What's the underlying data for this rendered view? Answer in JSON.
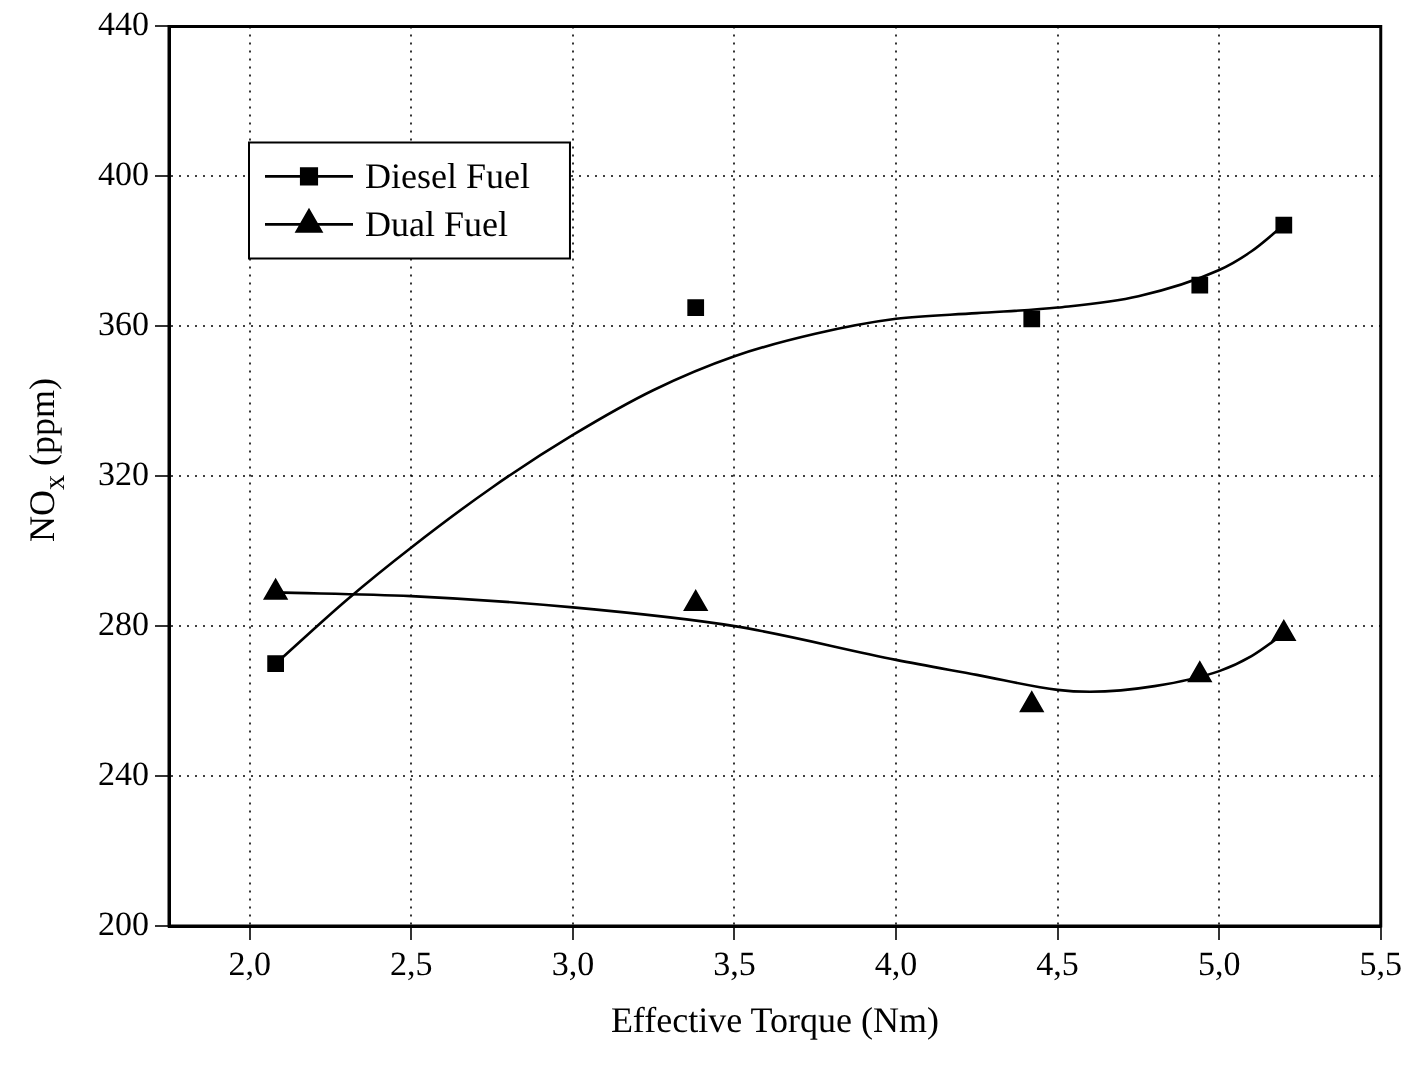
{
  "chart_data": {
    "type": "scatter",
    "xlabel": "Effective Torque (Nm)",
    "ylabel": "NO$_{x}$ (ppm)",
    "xlim": [
      1.75,
      5.5
    ],
    "xticks": [
      {
        "value": 2,
        "label": "2,0"
      },
      {
        "value": 2.5,
        "label": "2,5"
      },
      {
        "value": 3,
        "label": "3,0"
      },
      {
        "value": 3.5,
        "label": "3,5"
      },
      {
        "value": 4,
        "label": "4,0"
      },
      {
        "value": 4.5,
        "label": "4,5"
      },
      {
        "value": 5,
        "label": "5,0"
      },
      {
        "value": 5.5,
        "label": "5,5"
      }
    ],
    "ylim": [
      200,
      440
    ],
    "yticks": [
      200,
      240,
      280,
      320,
      360,
      400,
      440
    ],
    "grid": true,
    "legend": "top left",
    "series": [
      {
        "name": "Diesel Fuel",
        "color": "#000000",
        "marker": "square",
        "x": [
          2.08,
          3.38,
          4.42,
          4.94,
          5.2
        ],
        "values": [
          270,
          365,
          362,
          371,
          387
        ]
      },
      {
        "name": "Dual Fuel",
        "color": "#000000",
        "marker": "triangle",
        "x": [
          2.08,
          3.38,
          4.42,
          4.94,
          5.2
        ],
        "values": [
          289,
          286,
          259,
          267,
          278
        ]
      },
      {
        "type": "line",
        "color": "#000000",
        "marker": "none",
        "x": [
          2.08,
          2.3,
          2.5,
          2.75,
          3.0,
          3.25,
          3.5,
          3.75,
          4.0,
          4.25,
          4.5,
          4.75,
          5.0,
          5.1,
          5.2
        ],
        "values": [
          270,
          287,
          301,
          317,
          331,
          343,
          352,
          358,
          362,
          363.5,
          365,
          368,
          375,
          380,
          387
        ]
      },
      {
        "type": "line",
        "color": "#000000",
        "marker": "none",
        "x": [
          2.08,
          2.5,
          3.0,
          3.5,
          4.0,
          4.25,
          4.5,
          4.6,
          4.8,
          5.0,
          5.1,
          5.2
        ],
        "values": [
          289,
          288,
          285,
          280,
          271,
          267,
          263,
          262.5,
          264,
          268,
          272,
          278
        ]
      }
    ]
  }
}
